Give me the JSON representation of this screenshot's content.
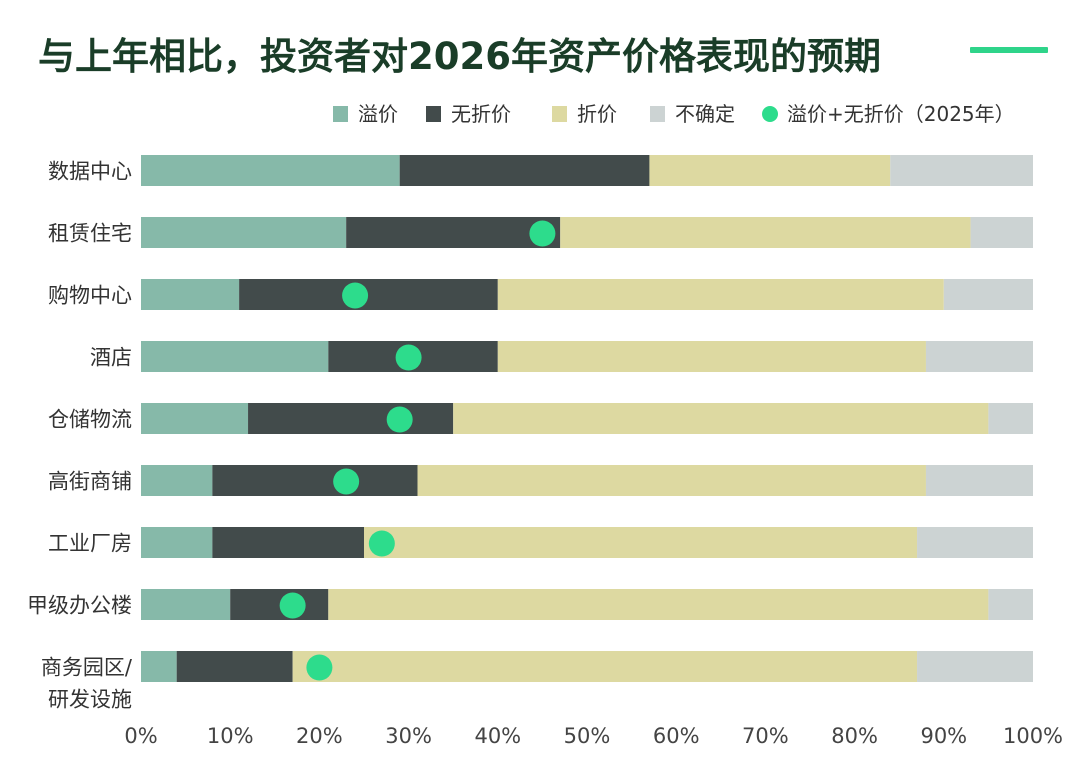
{
  "title": "与上年相比，投资者对2026年资产价格表现的预期",
  "colors": {
    "premium": "#86b9a9",
    "no_discount": "#424b4b",
    "discount": "#ddd9a1",
    "uncertain": "#ccd3d3",
    "marker": "#2ddc8c",
    "title": "#1a3d28"
  },
  "chart_data": {
    "type": "bar",
    "orientation": "horizontal",
    "stacked": true,
    "title": "与上年相比，投资者对2026年资产价格表现的预期",
    "legend": [
      {
        "key": "premium",
        "label": "溢价"
      },
      {
        "key": "no_discount",
        "label": "无折价"
      },
      {
        "key": "discount",
        "label": "折价"
      },
      {
        "key": "uncertain",
        "label": "不确定"
      },
      {
        "key": "marker",
        "label": "溢价+无折价（2025年）"
      }
    ],
    "categories": [
      [
        "数据中心"
      ],
      [
        "租赁住宅"
      ],
      [
        "购物中心"
      ],
      [
        "酒店"
      ],
      [
        "仓储物流"
      ],
      [
        "高街商铺"
      ],
      [
        "工业厂房"
      ],
      [
        "甲级办公楼"
      ],
      [
        "商务园区/",
        "研发设施"
      ]
    ],
    "series": [
      {
        "name": "溢价",
        "key": "premium",
        "values": [
          29,
          23,
          11,
          21,
          12,
          8,
          8,
          10,
          4
        ]
      },
      {
        "name": "无折价",
        "key": "no_discount",
        "values": [
          28,
          24,
          29,
          19,
          23,
          23,
          17,
          11,
          13
        ]
      },
      {
        "name": "折价",
        "key": "discount",
        "values": [
          27,
          46,
          50,
          48,
          60,
          57,
          62,
          74,
          70
        ]
      },
      {
        "name": "不确定",
        "key": "uncertain",
        "values": [
          16,
          7,
          10,
          12,
          5,
          12,
          13,
          5,
          13
        ]
      }
    ],
    "marker_series": {
      "name": "溢价+无折价（2025年）",
      "values": [
        null,
        45,
        24,
        30,
        29,
        23,
        27,
        17,
        20
      ]
    },
    "xlim": [
      0,
      100
    ],
    "xticks": [
      "0%",
      "10%",
      "20%",
      "30%",
      "40%",
      "50%",
      "60%",
      "70%",
      "80%",
      "90%",
      "100%"
    ]
  }
}
